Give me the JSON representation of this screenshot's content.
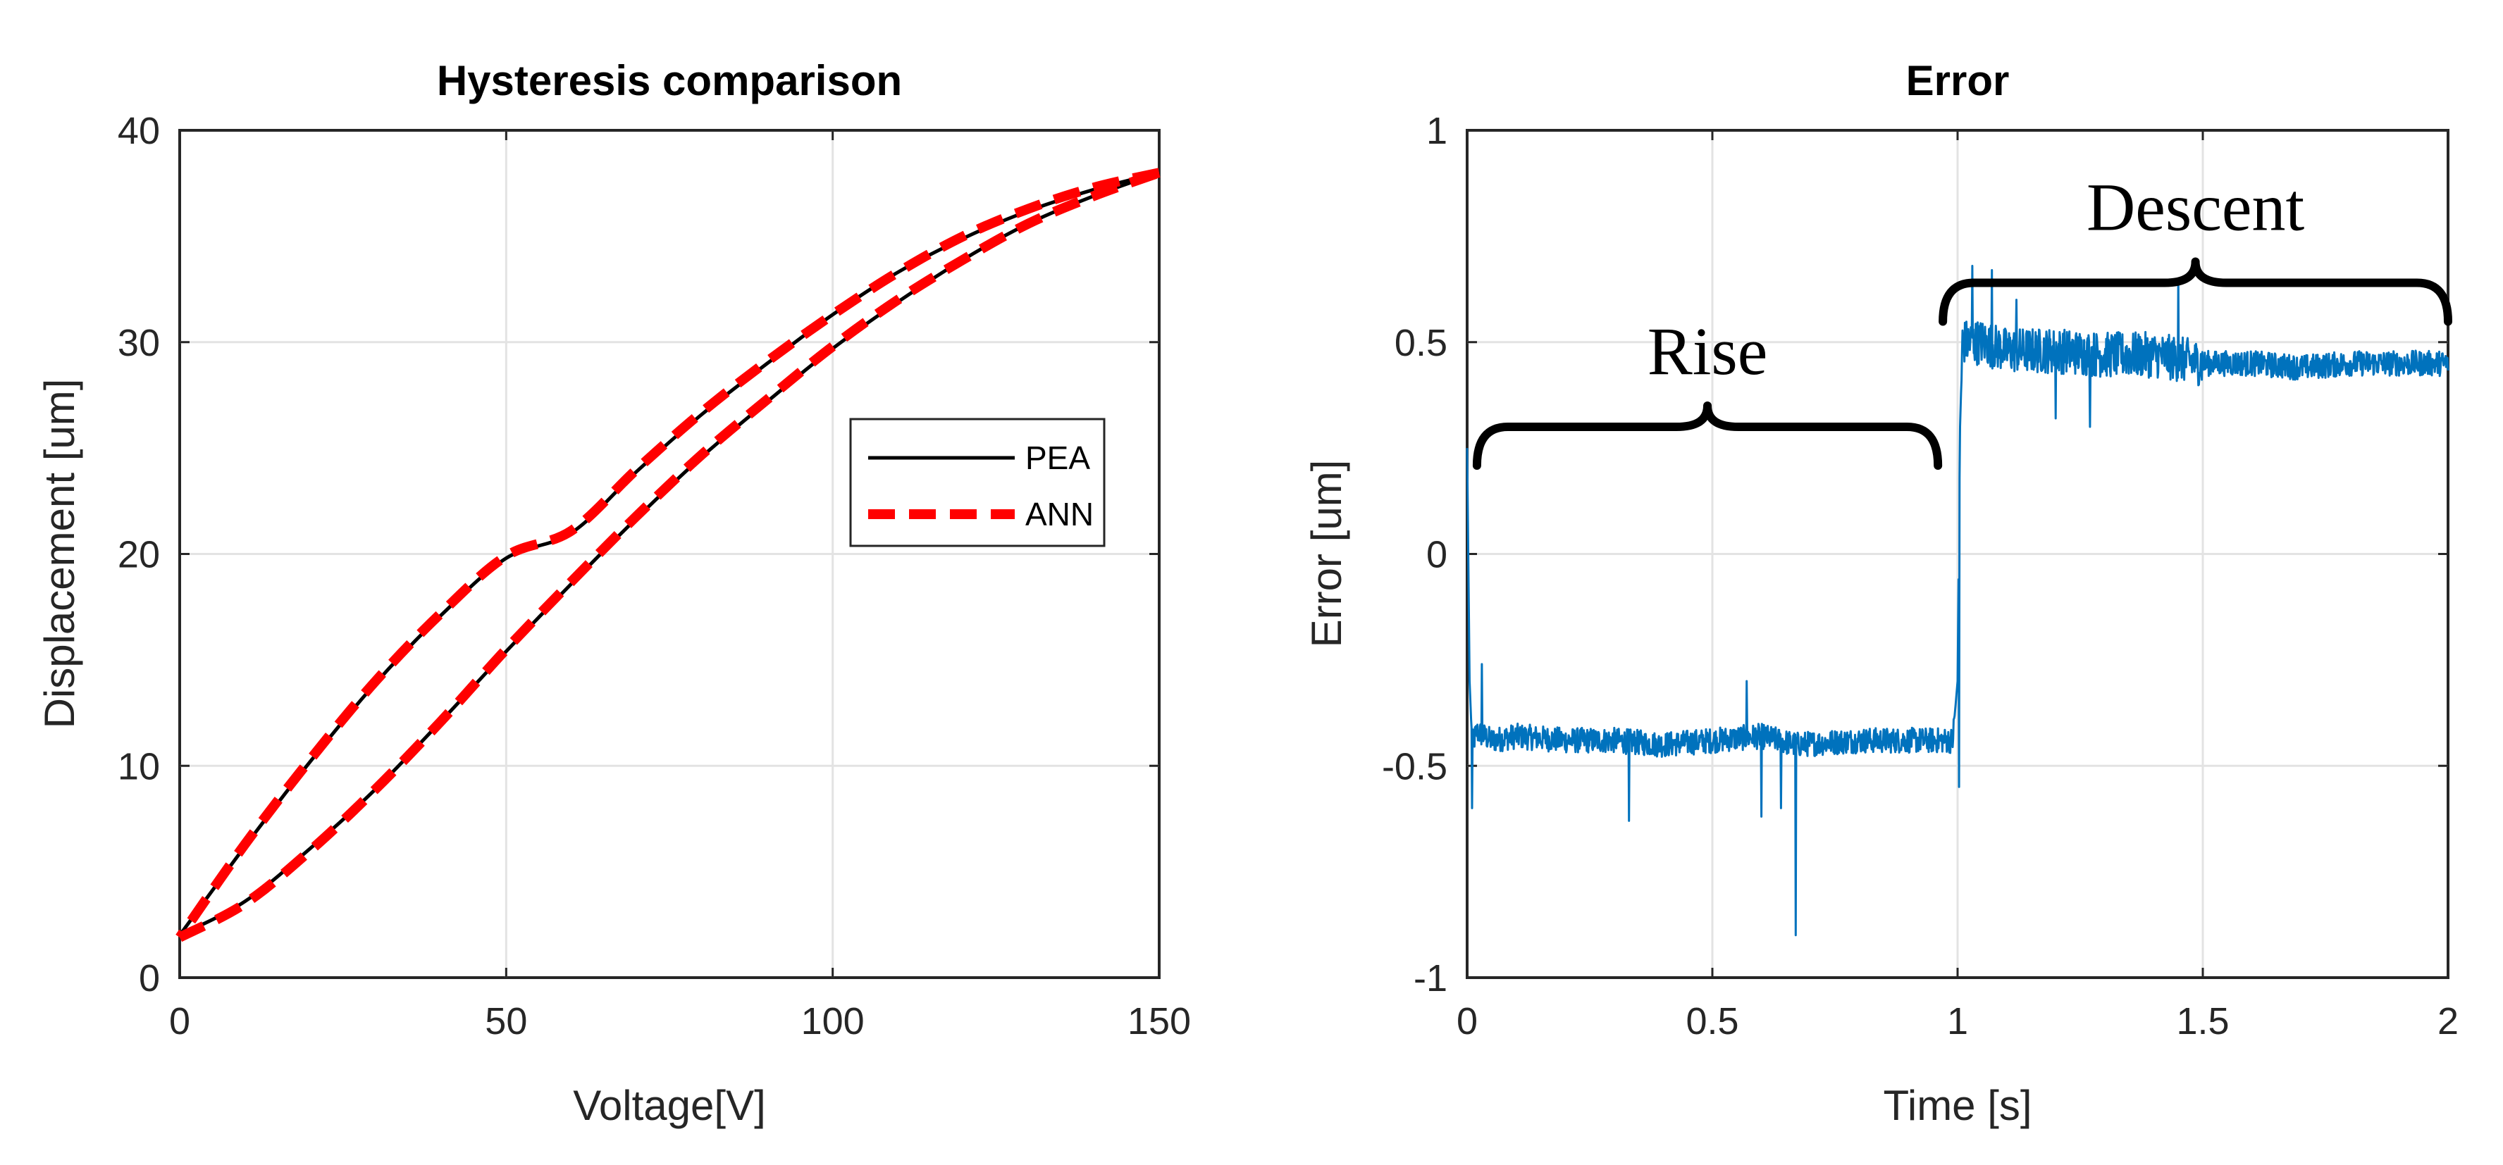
{
  "chart_data": [
    {
      "type": "line",
      "title": "Hysteresis comparison",
      "xlabel": "Voltage[V]",
      "ylabel": "Displacement [um]",
      "xlim": [
        0,
        150
      ],
      "ylim": [
        0,
        40
      ],
      "xticks": [
        0,
        50,
        100,
        150
      ],
      "yticks": [
        0,
        10,
        20,
        30,
        40
      ],
      "xtick_labels": [
        "0",
        "50",
        "100",
        "150"
      ],
      "ytick_labels": [
        "0",
        "10",
        "20",
        "30",
        "40"
      ],
      "grid": true,
      "legend_position": "center-right",
      "series": [
        {
          "name": "PEA",
          "color": "#000000",
          "style": "solid",
          "ascending": {
            "x": [
              0,
              10,
              20,
              30,
              40,
              50,
              60,
              70,
              80,
              90,
              100,
              110,
              120,
              130,
              140,
              150
            ],
            "y": [
              2.0,
              3.6,
              6.1,
              8.9,
              12.1,
              15.4,
              18.6,
              21.7,
              24.6,
              27.2,
              29.7,
              31.9,
              33.9,
              35.6,
              36.9,
              38.0
            ]
          },
          "descending": {
            "x": [
              150,
              140,
              130,
              120,
              110,
              100,
              90,
              80,
              70,
              60,
              50,
              40,
              30,
              20,
              10,
              0
            ],
            "y": [
              38.0,
              37.2,
              36.2,
              34.9,
              33.3,
              31.3,
              29.0,
              26.6,
              23.9,
              21.0,
              19.8,
              17.1,
              13.9,
              10.2,
              6.2,
              2.0
            ]
          }
        },
        {
          "name": "ANN",
          "color": "#ff0000",
          "style": "dashed",
          "ascending": {
            "x": [
              0,
              10,
              20,
              30,
              40,
              50,
              60,
              70,
              80,
              90,
              100,
              110,
              120,
              130,
              140,
              150
            ],
            "y": [
              1.9,
              3.5,
              6.0,
              8.9,
              12.1,
              15.5,
              18.7,
              21.8,
              24.7,
              27.3,
              29.8,
              32.0,
              33.9,
              35.6,
              36.9,
              38.0
            ]
          },
          "descending": {
            "x": [
              150,
              140,
              130,
              120,
              110,
              100,
              90,
              80,
              70,
              60,
              50,
              40,
              30,
              20,
              10,
              0
            ],
            "y": [
              38.0,
              37.3,
              36.3,
              35.0,
              33.3,
              31.3,
              29.1,
              26.7,
              24.0,
              21.1,
              19.9,
              17.2,
              14.0,
              10.3,
              6.3,
              1.9
            ]
          }
        }
      ]
    },
    {
      "type": "line",
      "title": "Error",
      "xlabel": "Time [s]",
      "ylabel": "Error [um]",
      "xlim": [
        0,
        2
      ],
      "ylim": [
        -1,
        1
      ],
      "xticks": [
        0,
        0.5,
        1,
        1.5,
        2
      ],
      "yticks": [
        -1,
        -0.5,
        0,
        0.5,
        1
      ],
      "xtick_labels": [
        "0",
        "0.5",
        "1",
        "1.5",
        "2"
      ],
      "ytick_labels": [
        "-1",
        "-0.5",
        "0",
        "0.5",
        "1"
      ],
      "grid": true,
      "series": [
        {
          "name": "Error",
          "color": "#0072bd",
          "noise_amplitude": 0.03,
          "x": [
            0,
            0.005,
            0.01,
            0.02,
            0.05,
            0.1,
            0.2,
            0.3,
            0.4,
            0.5,
            0.6,
            0.67,
            0.8,
            0.9,
            0.99,
            1.0,
            1.005,
            1.01,
            1.05,
            1.1,
            1.2,
            1.3,
            1.4,
            1.5,
            1.6,
            1.7,
            1.8,
            1.9,
            2.0
          ],
          "y": [
            0.25,
            -0.3,
            -0.45,
            -0.42,
            -0.44,
            -0.43,
            -0.44,
            -0.44,
            -0.45,
            -0.44,
            -0.43,
            -0.45,
            -0.44,
            -0.44,
            -0.44,
            -0.3,
            0.3,
            0.5,
            0.5,
            0.48,
            0.48,
            0.47,
            0.47,
            0.45,
            0.45,
            0.44,
            0.45,
            0.45,
            0.45
          ]
        }
      ],
      "spikes": [
        {
          "x": 0.01,
          "y": -0.6
        },
        {
          "x": 0.03,
          "y": -0.26
        },
        {
          "x": 0.33,
          "y": -0.63
        },
        {
          "x": 0.6,
          "y": -0.62
        },
        {
          "x": 0.64,
          "y": -0.6
        },
        {
          "x": 0.67,
          "y": -0.9
        },
        {
          "x": 0.57,
          "y": -0.3
        },
        {
          "x": 1.003,
          "y": -0.55
        },
        {
          "x": 1.03,
          "y": 0.68
        },
        {
          "x": 1.07,
          "y": 0.67
        },
        {
          "x": 1.12,
          "y": 0.6
        },
        {
          "x": 1.2,
          "y": 0.32
        },
        {
          "x": 1.27,
          "y": 0.3
        },
        {
          "x": 1.45,
          "y": 0.65
        }
      ],
      "annotations": [
        {
          "text": "Rise",
          "x_range": [
            0.02,
            0.96
          ],
          "y": 0.3
        },
        {
          "text": "Descent",
          "x_range": [
            0.97,
            2.0
          ],
          "y": 0.64
        }
      ]
    }
  ],
  "legend": {
    "entries": [
      "PEA",
      "ANN"
    ]
  }
}
